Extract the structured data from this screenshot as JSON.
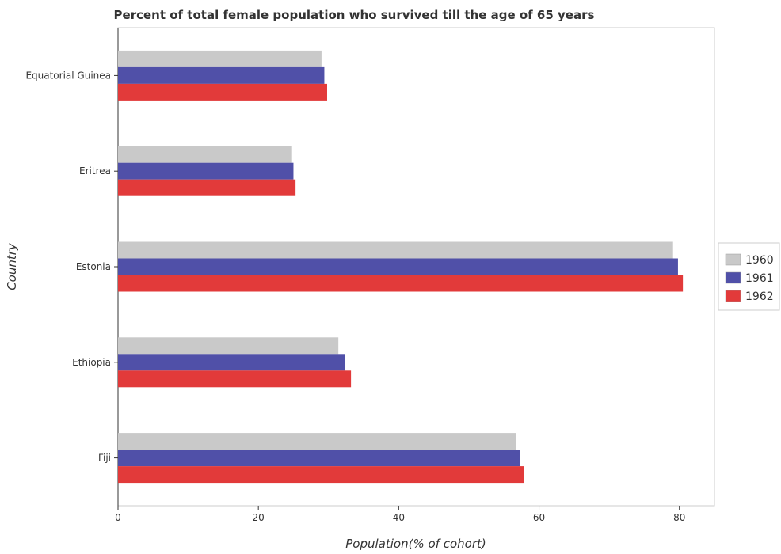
{
  "chart_data": {
    "type": "bar",
    "orientation": "horizontal",
    "title": "Percent of total female population who survived till the age of 65 years",
    "xlabel": "Population(% of cohort)",
    "ylabel": "Country",
    "categories": [
      "Equatorial Guinea",
      "Eritrea",
      "Estonia",
      "Ethiopia",
      "Fiji"
    ],
    "series": [
      {
        "name": "1960",
        "color": "#c9c9c9",
        "values": [
          29.0,
          24.8,
          79.1,
          31.4,
          56.7
        ]
      },
      {
        "name": "1961",
        "color": "#5050a8",
        "values": [
          29.4,
          25.0,
          79.8,
          32.3,
          57.3
        ]
      },
      {
        "name": "1962",
        "color": "#e23a3a",
        "values": [
          29.8,
          25.3,
          80.5,
          33.2,
          57.8
        ]
      }
    ],
    "xlim": [
      0,
      85
    ],
    "xticks": [
      0,
      20,
      40,
      60,
      80
    ],
    "grid": false,
    "legend": "right"
  }
}
